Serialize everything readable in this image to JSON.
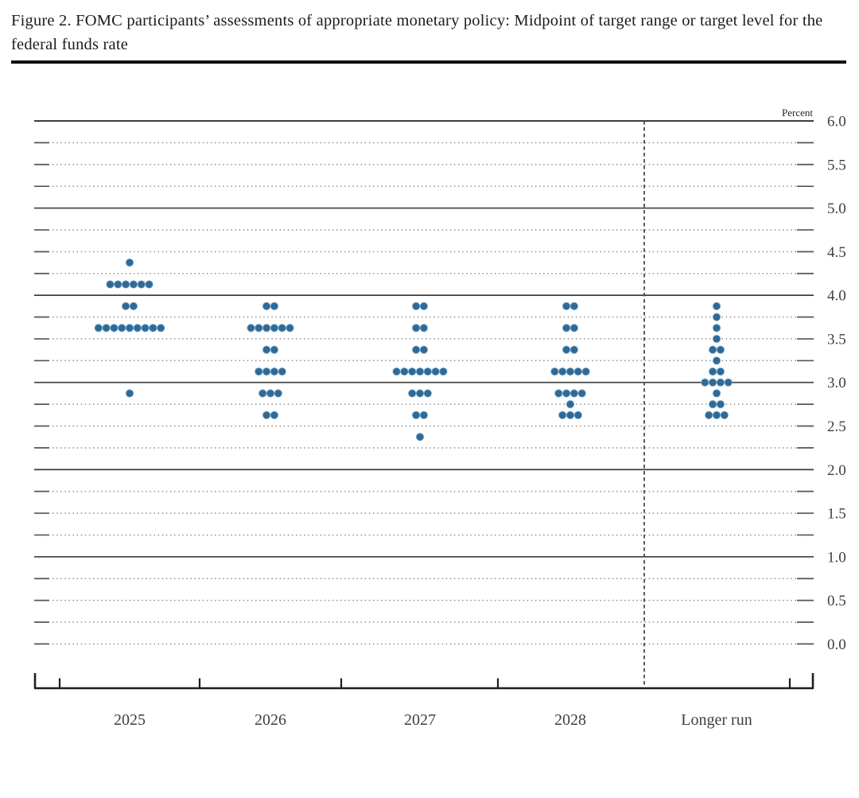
{
  "figure": {
    "title": "Figure 2. FOMC participants’ assessments of appropriate monetary policy: Midpoint of target range or target level for the federal funds rate"
  },
  "chart_data": {
    "type": "scatter",
    "subtype": "fomc-dot-plot",
    "title": "Figure 2. FOMC participants’ assessments of appropriate monetary policy: Midpoint of target range or target level for the federal funds rate",
    "ylabel": "Percent",
    "xlabel": "",
    "ylim": [
      0.0,
      6.0
    ],
    "y_minor_step": 0.25,
    "y_label_step": 0.5,
    "y_tick_labels": [
      "6.0",
      "5.5",
      "5.0",
      "4.5",
      "4.0",
      "3.5",
      "3.0",
      "2.5",
      "2.0",
      "1.5",
      "1.0",
      "0.5",
      "0.0"
    ],
    "solid_gridlines": [
      6.0,
      5.0,
      4.0,
      3.0,
      2.0,
      1.0
    ],
    "grid": "dotted-quarter-point",
    "legend_position": "none",
    "categories": [
      "2025",
      "2026",
      "2027",
      "2028",
      "Longer run"
    ],
    "dashed_separator_before_category": "Longer run",
    "dot_color": "#2e6a99",
    "dot_halo_color": "#84aac6",
    "series": [
      {
        "name": "2025",
        "dots": [
          {
            "value": 4.375,
            "count": 1
          },
          {
            "value": 4.125,
            "count": 6
          },
          {
            "value": 3.875,
            "count": 2
          },
          {
            "value": 3.625,
            "count": 9
          },
          {
            "value": 2.875,
            "count": 1
          }
        ]
      },
      {
        "name": "2026",
        "dots": [
          {
            "value": 3.875,
            "count": 2
          },
          {
            "value": 3.625,
            "count": 6
          },
          {
            "value": 3.375,
            "count": 2
          },
          {
            "value": 3.125,
            "count": 4
          },
          {
            "value": 2.875,
            "count": 3
          },
          {
            "value": 2.625,
            "count": 2
          }
        ]
      },
      {
        "name": "2027",
        "dots": [
          {
            "value": 3.875,
            "count": 2
          },
          {
            "value": 3.625,
            "count": 2
          },
          {
            "value": 3.375,
            "count": 2
          },
          {
            "value": 3.125,
            "count": 7
          },
          {
            "value": 2.875,
            "count": 3
          },
          {
            "value": 2.625,
            "count": 2
          },
          {
            "value": 2.375,
            "count": 1
          }
        ]
      },
      {
        "name": "2028",
        "dots": [
          {
            "value": 3.875,
            "count": 2
          },
          {
            "value": 3.625,
            "count": 2
          },
          {
            "value": 3.375,
            "count": 2
          },
          {
            "value": 3.125,
            "count": 5
          },
          {
            "value": 2.875,
            "count": 4
          },
          {
            "value": 2.75,
            "count": 1
          },
          {
            "value": 2.625,
            "count": 3
          }
        ]
      },
      {
        "name": "Longer run",
        "dots": [
          {
            "value": 3.875,
            "count": 1
          },
          {
            "value": 3.75,
            "count": 1
          },
          {
            "value": 3.625,
            "count": 1
          },
          {
            "value": 3.5,
            "count": 1
          },
          {
            "value": 3.375,
            "count": 2
          },
          {
            "value": 3.25,
            "count": 1
          },
          {
            "value": 3.125,
            "count": 2
          },
          {
            "value": 3.0,
            "count": 4
          },
          {
            "value": 2.875,
            "count": 1
          },
          {
            "value": 2.75,
            "count": 2
          },
          {
            "value": 2.625,
            "count": 3
          }
        ]
      }
    ],
    "colors": {
      "solid_line": "#3d3d3d",
      "dotted_line": "#8e8e8e",
      "tick_dash": "#555555",
      "axis": "#1d1d1d",
      "label_text": "#3f3f3f",
      "dashed_separator": "#4a4a4a"
    }
  }
}
